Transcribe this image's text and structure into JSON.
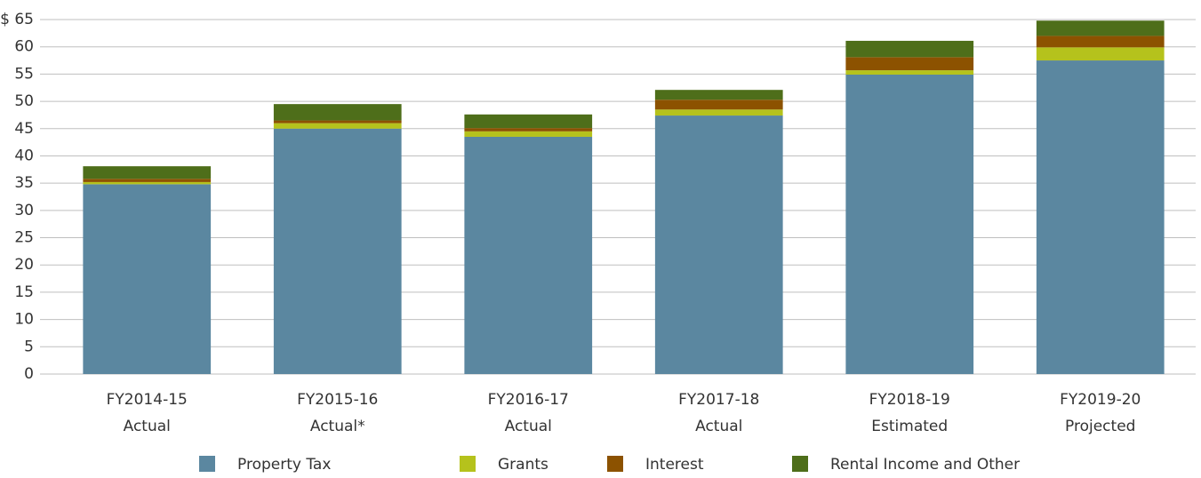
{
  "chart_data": {
    "type": "stacked_bar",
    "categories": [
      [
        "FY2014-15",
        "Actual"
      ],
      [
        "FY2015-16",
        "Actual*"
      ],
      [
        "FY2016-17",
        "Actual"
      ],
      [
        "FY2017-18",
        "Actual"
      ],
      [
        "FY2018-19",
        "Estimated"
      ],
      [
        "FY2019-20",
        "Projected"
      ]
    ],
    "series": [
      {
        "name": "Property Tax",
        "color": "#5b87a0",
        "values": [
          34.8,
          45.0,
          43.5,
          47.4,
          54.9,
          57.5
        ]
      },
      {
        "name": "Grants",
        "color": "#b5c21c",
        "values": [
          0.4,
          1.0,
          1.0,
          1.1,
          0.8,
          2.4
        ]
      },
      {
        "name": "Interest",
        "color": "#8c5200",
        "values": [
          0.6,
          0.5,
          0.6,
          1.8,
          2.4,
          2.1
        ]
      },
      {
        "name": "Rental Income and Other",
        "color": "#4e6e1a",
        "values": [
          2.3,
          3.0,
          2.5,
          1.8,
          3.0,
          2.8
        ]
      }
    ],
    "ylim": [
      0,
      65
    ],
    "yticks": [
      0,
      5,
      10,
      15,
      20,
      25,
      30,
      35,
      40,
      45,
      50,
      55,
      60,
      {
        "value": 65,
        "label": "$ 65"
      }
    ],
    "grid": true,
    "legend": "bottom"
  }
}
